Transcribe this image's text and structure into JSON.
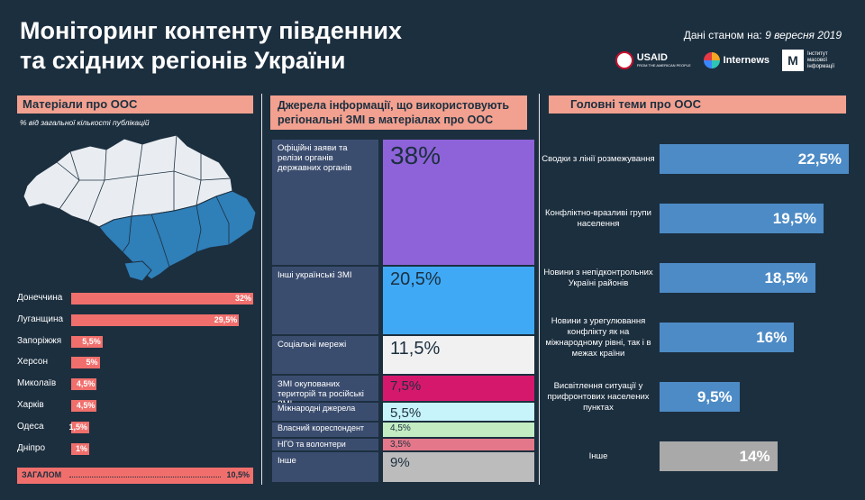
{
  "header": {
    "title_line1": "Моніторинг контенту південних",
    "title_line2": "та східних регіонів України",
    "date_label": "Дані станом на:",
    "date_value": "9 вересня 2019",
    "logos": {
      "usaid": "USAID",
      "usaid_sub": "FROM THE AMERICAN PEOPLE",
      "internews": "Internews",
      "imi": "Інститут масової інформації"
    }
  },
  "left": {
    "header": "Матеріали про ООС",
    "subnote": "% від загальної кількості публікацій",
    "regions": [
      {
        "label": "Донеччина",
        "value": 32,
        "display": "32%"
      },
      {
        "label": "Луганщина",
        "value": 29.5,
        "display": "29,5%"
      },
      {
        "label": "Запоріжжя",
        "value": 5.5,
        "display": "5,5%"
      },
      {
        "label": "Херсон",
        "value": 5,
        "display": "5%"
      },
      {
        "label": "Миколаїв",
        "value": 4.5,
        "display": "4,5%"
      },
      {
        "label": "Харків",
        "value": 4.5,
        "display": "4,5%"
      },
      {
        "label": "Одеса",
        "value": 1.5,
        "display": "1,5%"
      },
      {
        "label": "Дніпро",
        "value": 1,
        "display": "1%"
      }
    ],
    "total_label": "ЗАГАЛОМ",
    "total_value": "10,5%"
  },
  "middle": {
    "header_line1": "Джерела інформації, що використовують",
    "header_line2": "регіональні ЗМІ в матеріалах про ООС",
    "sources": [
      {
        "label": "Офіційні заяви та релізи органів державних органів",
        "value": 38,
        "display": "38%",
        "color": "#8e63d9",
        "text_color": "#1c2f3f"
      },
      {
        "label": "Інші українські ЗМІ",
        "value": 20.5,
        "display": "20,5%",
        "color": "#3fa9f5",
        "text_color": "#1c2f3f"
      },
      {
        "label": "Соціальні мережі",
        "value": 11.5,
        "display": "11,5%",
        "color": "#f1f1f1",
        "text_color": "#1c2f3f"
      },
      {
        "label": "ЗМІ окупованих територій та російські ЗМІ",
        "value": 7.5,
        "display": "7,5%",
        "color": "#d6186d",
        "text_color": "#1c2f3f"
      },
      {
        "label": "Міжнародні джерела",
        "value": 5.5,
        "display": "5,5%",
        "color": "#c7f3fb",
        "text_color": "#1c2f3f"
      },
      {
        "label": "Власний кореспондент",
        "value": 4.5,
        "display": "4,5%",
        "color": "#c3ecc2",
        "text_color": "#1c2f3f"
      },
      {
        "label": "НГО та волонтери",
        "value": 3.5,
        "display": "3,5%",
        "color": "#e4788a",
        "text_color": "#1c2f3f"
      },
      {
        "label": "Інше",
        "value": 9,
        "display": "9%",
        "color": "#bcbcbc",
        "text_color": "#1c2f3f"
      }
    ]
  },
  "right": {
    "header": "Головні теми про ООС",
    "themes": [
      {
        "label": "Сводки з лінії розмежування",
        "value": 22.5,
        "display": "22,5%"
      },
      {
        "label": "Конфліктно-вразливі групи населення",
        "value": 19.5,
        "display": "19,5%"
      },
      {
        "label": "Новини з непідконтрольних Україні районів",
        "value": 18.5,
        "display": "18,5%"
      },
      {
        "label": "Новини з урегулювання конфлікту як на міжнародному рівні, так і в межах країни",
        "value": 16,
        "display": "16%"
      },
      {
        "label": "Висвітлення ситуації у прифронтових населених пунктах",
        "value": 9.5,
        "display": "9,5%"
      },
      {
        "label": "Інше",
        "value": 14,
        "display": "14%",
        "color": "#a9a9a9"
      }
    ]
  }
}
